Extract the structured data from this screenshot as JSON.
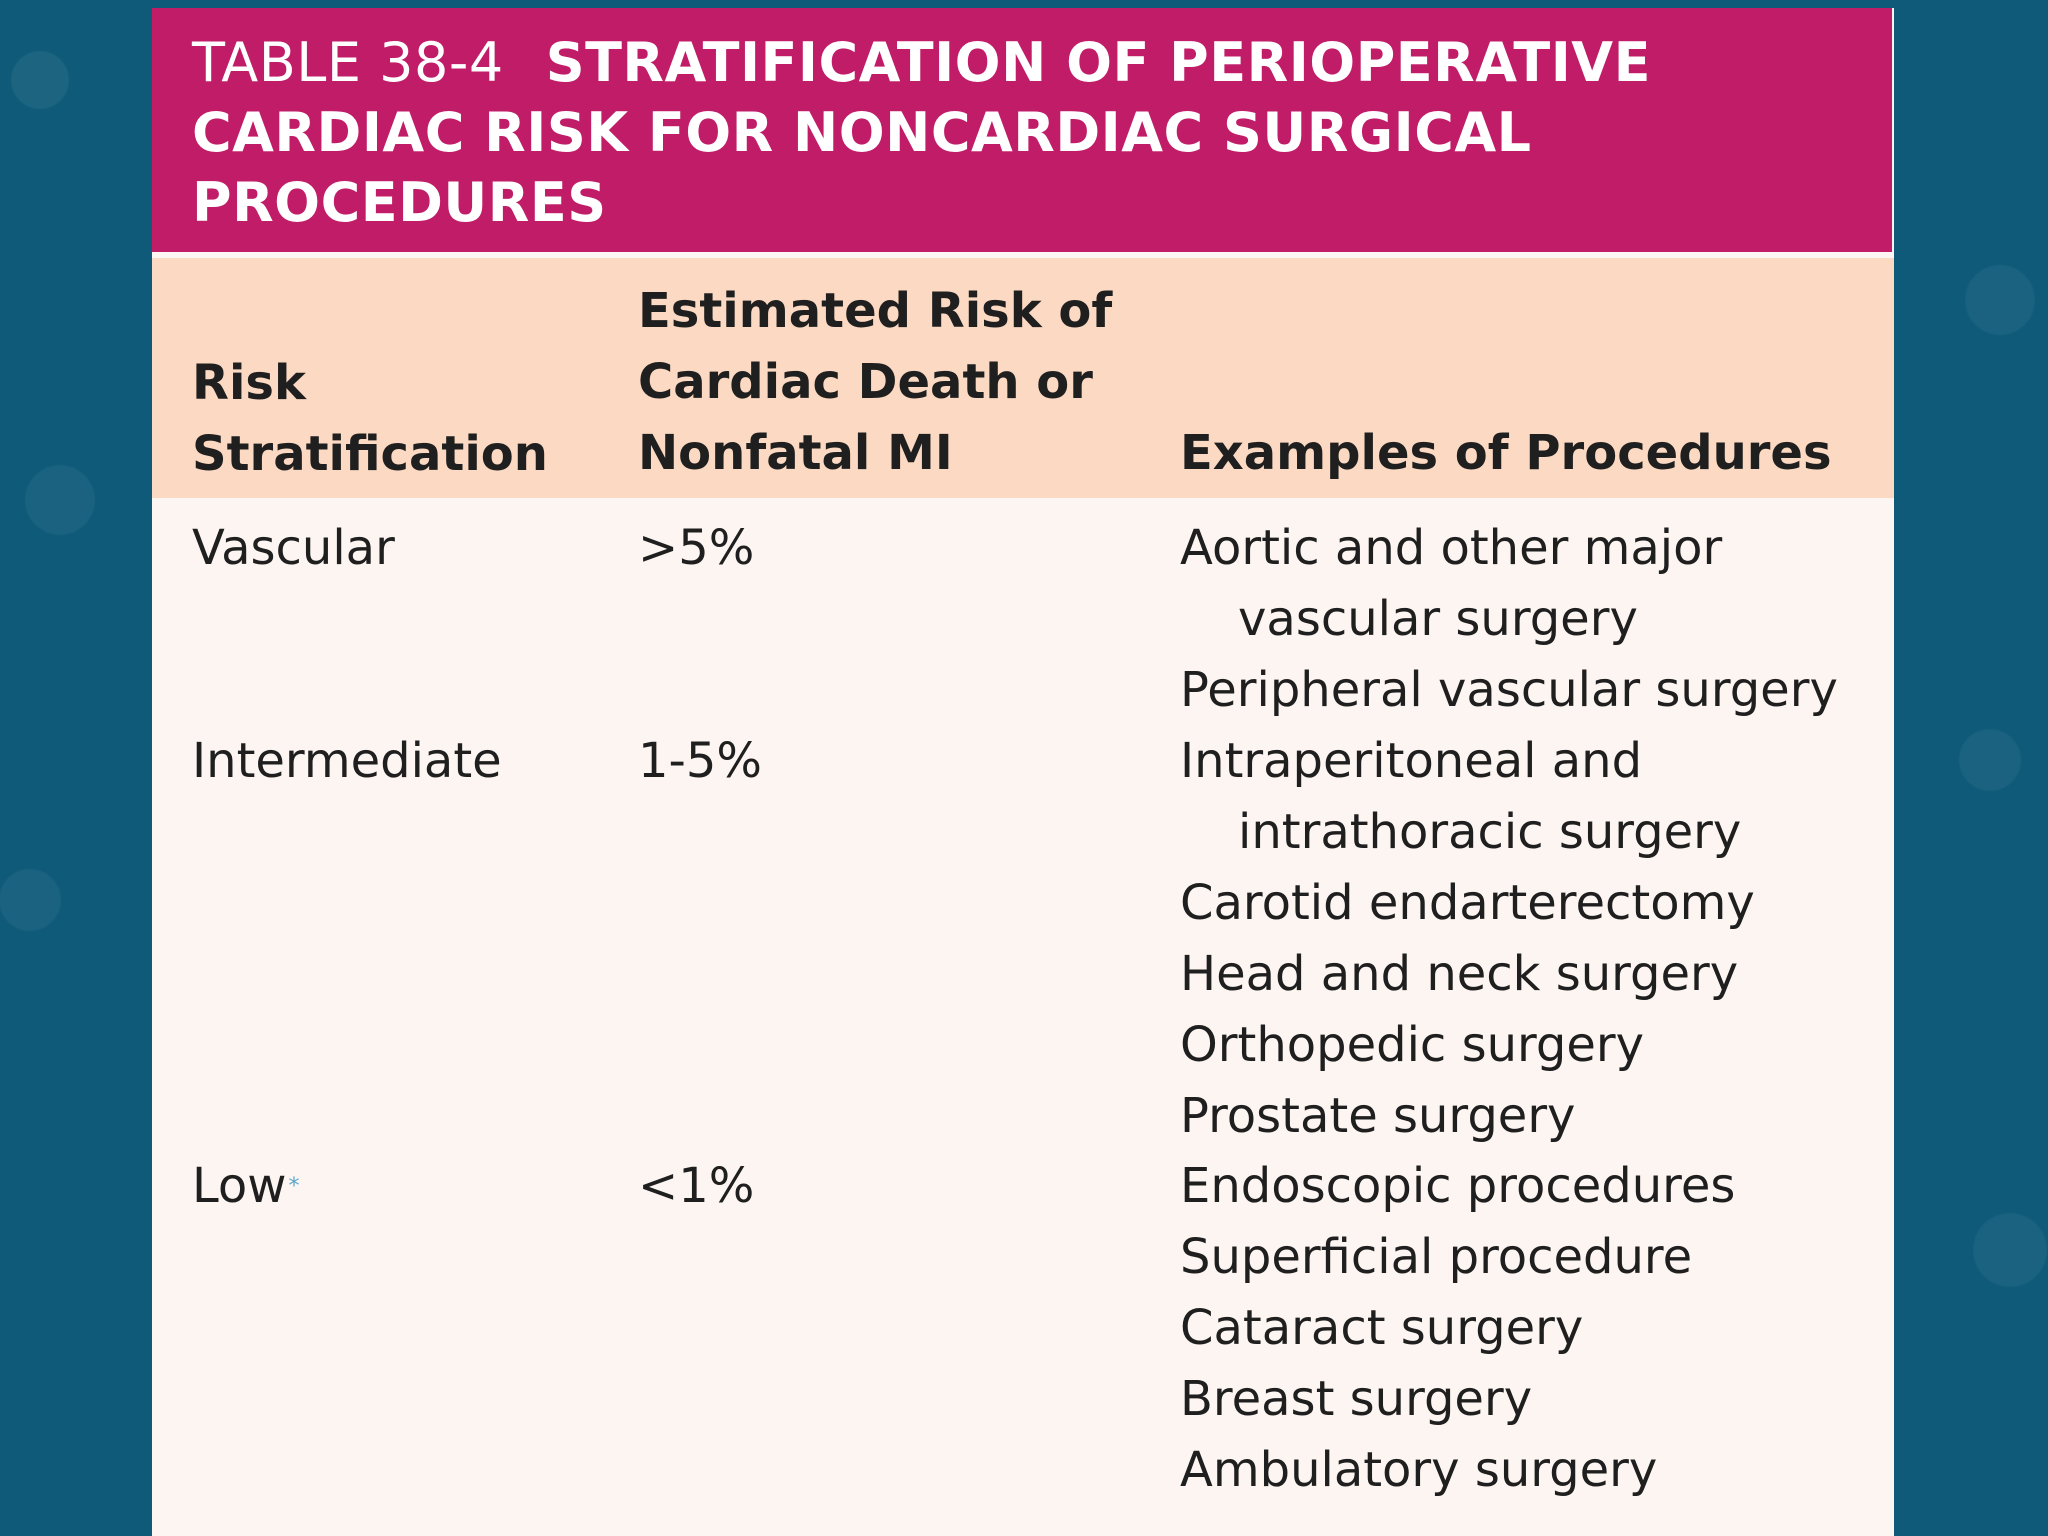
{
  "title": {
    "label": "TABLE 38-4",
    "text": "STRATIFICATION OF PERIOPERATIVE CARDIAC RISK FOR NONCARDIAC SURGICAL PROCEDURES"
  },
  "headers": {
    "col1": "Risk Stratification",
    "col2": "Estimated Risk of Cardiac Death or Nonfatal MI",
    "col3": "Examples of Procedures"
  },
  "rows": [
    {
      "risk": "Vascular",
      "marker": "",
      "estimate": ">5%",
      "procedures": [
        "Aortic and other major",
        "vascular surgery",
        "Peripheral vascular surgery"
      ]
    },
    {
      "risk": "Intermediate",
      "marker": "",
      "estimate": "1-5%",
      "procedures": [
        "Intraperitoneal and",
        "intrathoracic surgery",
        "Carotid endarterectomy",
        "Head and neck surgery",
        "Orthopedic surgery",
        "Prostate surgery"
      ]
    },
    {
      "risk": "Low",
      "marker": "*",
      "estimate": "<1%",
      "procedures": [
        "Endoscopic procedures",
        "Superficial procedure",
        "Cataract surgery",
        "Breast surgery",
        "Ambulatory surgery"
      ]
    }
  ],
  "colors": {
    "background": "#0e5a78",
    "title_bar": "#c01c68",
    "header_band": "#fbd9c2",
    "table_body": "#fdf5f1"
  }
}
